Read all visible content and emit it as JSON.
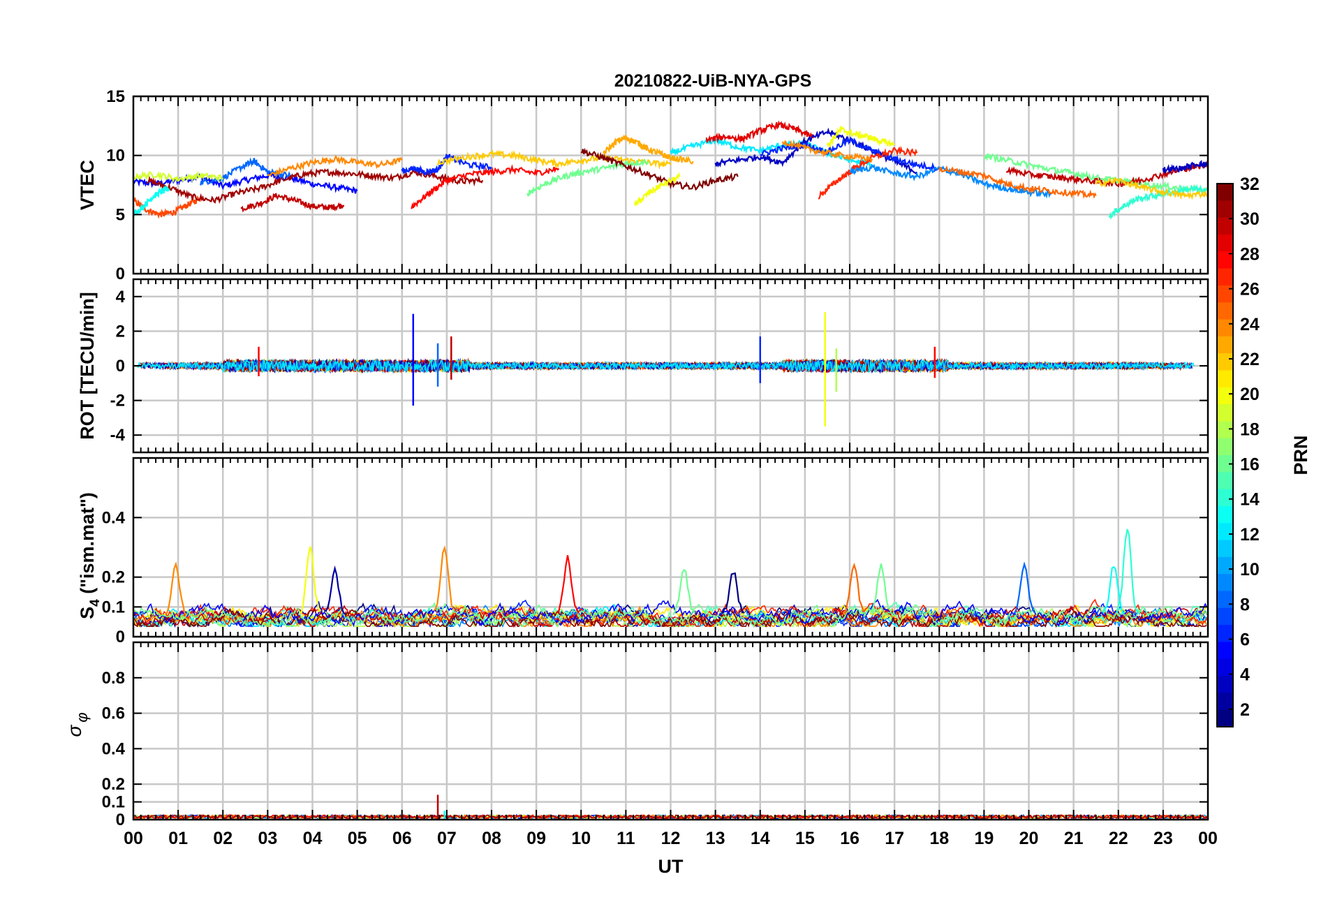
{
  "title": "20210822-UiB-NYA-GPS",
  "colors": {
    "background": "#ffffff",
    "axis": "#000000",
    "grid": "#c8c8c8",
    "colormap": "jet"
  },
  "chart_data": [
    {
      "type": "line",
      "panel": "vtec",
      "ylabel": "VTEC",
      "ylim": [
        0,
        15
      ],
      "yticks": [
        "0",
        "5",
        "10",
        "15"
      ],
      "xlim": [
        0,
        24
      ],
      "grid": true,
      "series": [
        {
          "prn": 5,
          "x": [
            0.0,
            0.5,
            1.0,
            1.5,
            2.0,
            2.5,
            3.0,
            3.5,
            4.0,
            4.5,
            5.0
          ],
          "y": [
            7.8,
            7.6,
            7.9,
            8.2,
            7.4,
            7.9,
            8.3,
            8.1,
            7.6,
            7.3,
            7.0
          ]
        },
        {
          "prn": 26,
          "x": [
            0.0,
            0.3,
            0.6,
            0.9,
            1.2,
            1.5
          ],
          "y": [
            6.2,
            5.4,
            5.0,
            5.2,
            5.8,
            6.4
          ]
        },
        {
          "prn": 30,
          "x": [
            2.4,
            2.8,
            3.2,
            3.6,
            4.0,
            4.4,
            4.7
          ],
          "y": [
            5.5,
            5.9,
            6.6,
            6.2,
            5.7,
            5.6,
            5.8
          ]
        },
        {
          "prn": 31,
          "x": [
            0.3,
            0.8,
            1.3,
            1.8,
            2.3,
            2.8,
            3.3,
            3.8,
            4.3,
            4.8,
            5.3,
            5.8,
            6.3,
            6.8,
            7.3,
            7.8
          ],
          "y": [
            7.9,
            7.3,
            6.5,
            6.2,
            6.8,
            7.2,
            7.9,
            8.4,
            8.6,
            8.5,
            8.3,
            8.1,
            8.6,
            8.2,
            7.8,
            7.9
          ]
        },
        {
          "prn": 8,
          "x": [
            1.5,
            2.0,
            2.5,
            2.7,
            3.0,
            3.5
          ],
          "y": [
            7.7,
            8.1,
            9.2,
            9.5,
            8.6,
            8.3
          ]
        },
        {
          "prn": 24,
          "x": [
            3.0,
            3.5,
            4.0,
            4.5,
            5.0,
            5.5,
            6.0
          ],
          "y": [
            8.3,
            8.9,
            9.4,
            9.7,
            9.4,
            9.2,
            9.6
          ]
        },
        {
          "prn": 19,
          "x": [
            0.0,
            0.5,
            1.0,
            1.5,
            2.0
          ],
          "y": [
            8.2,
            8.4,
            8.0,
            8.3,
            8.1
          ]
        },
        {
          "prn": 13,
          "x": [
            0.0,
            0.2,
            0.4,
            0.6,
            0.8
          ],
          "y": [
            5.0,
            5.6,
            6.4,
            6.9,
            7.2
          ]
        },
        {
          "prn": 28,
          "x": [
            6.2,
            6.6,
            7.0,
            7.5,
            8.0,
            8.5,
            9.0,
            9.5
          ],
          "y": [
            5.6,
            6.8,
            7.9,
            8.4,
            8.6,
            8.8,
            8.5,
            8.9
          ]
        },
        {
          "prn": 6,
          "x": [
            6.0,
            6.3,
            6.5,
            6.8,
            7.0,
            7.5,
            8.0
          ],
          "y": [
            8.7,
            8.9,
            8.6,
            8.8,
            9.9,
            9.2,
            9.0
          ]
        },
        {
          "prn": 22,
          "x": [
            6.8,
            7.5,
            8.0,
            8.5,
            9.0,
            9.5,
            10.0,
            10.5,
            11.0,
            11.5,
            12.0
          ],
          "y": [
            9.4,
            9.9,
            10.1,
            10.0,
            9.6,
            9.3,
            9.6,
            9.8,
            9.6,
            9.4,
            9.2
          ]
        },
        {
          "prn": 16,
          "x": [
            8.8,
            9.2,
            9.6,
            10.0,
            10.5,
            11.0,
            11.5
          ],
          "y": [
            6.8,
            7.6,
            8.2,
            8.6,
            8.9,
            9.3,
            9.5
          ]
        },
        {
          "prn": 32,
          "x": [
            10.0,
            10.5,
            11.0,
            11.5,
            12.0,
            12.5,
            13.0,
            13.5
          ],
          "y": [
            10.4,
            9.8,
            9.1,
            8.4,
            7.6,
            7.3,
            7.9,
            8.2
          ]
        },
        {
          "prn": 23,
          "x": [
            10.5,
            10.8,
            11.0,
            11.3,
            11.5,
            11.8,
            12.0,
            12.5
          ],
          "y": [
            10.2,
            11.2,
            11.5,
            11.0,
            10.5,
            10.1,
            9.8,
            9.5
          ]
        },
        {
          "prn": 20,
          "x": [
            11.2,
            11.5,
            11.8,
            12.2
          ],
          "y": [
            5.8,
            6.8,
            7.5,
            8.2
          ]
        },
        {
          "prn": 12,
          "x": [
            12.0,
            12.5,
            13.0,
            13.5,
            14.0,
            14.5,
            15.0,
            15.5,
            16.0,
            16.5
          ],
          "y": [
            10.2,
            10.8,
            11.3,
            10.7,
            10.4,
            10.9,
            11.0,
            10.2,
            9.6,
            9.2
          ]
        },
        {
          "prn": 29,
          "x": [
            12.8,
            13.2,
            13.6,
            14.0,
            14.4,
            14.8,
            15.2
          ],
          "y": [
            11.3,
            11.6,
            11.4,
            12.1,
            12.6,
            12.2,
            11.5
          ]
        },
        {
          "prn": 3,
          "x": [
            13.0,
            13.5,
            14.0,
            14.5,
            15.0,
            15.5,
            16.0,
            16.5,
            17.0,
            17.5
          ],
          "y": [
            9.3,
            9.6,
            9.9,
            9.4,
            11.2,
            12.0,
            11.3,
            10.4,
            9.5,
            8.6
          ]
        },
        {
          "prn": 6,
          "x": [
            14.0,
            14.5,
            15.0,
            15.5,
            16.0,
            16.5,
            17.0,
            17.5,
            18.0
          ],
          "y": [
            10.1,
            10.6,
            10.9,
            10.3,
            11.3,
            10.4,
            9.7,
            9.2,
            8.9
          ]
        },
        {
          "prn": 20,
          "x": [
            15.5,
            15.8,
            16.1,
            16.4,
            16.7,
            17.0
          ],
          "y": [
            10.8,
            12.2,
            11.8,
            11.6,
            11.2,
            10.9
          ]
        },
        {
          "prn": 27,
          "x": [
            15.3,
            15.7,
            16.1,
            16.5,
            17.0,
            17.5
          ],
          "y": [
            6.5,
            7.8,
            8.9,
            9.8,
            10.4,
            10.2
          ]
        },
        {
          "prn": 24,
          "x": [
            14.5,
            15.0,
            15.5,
            16.0,
            16.5
          ],
          "y": [
            11.2,
            10.6,
            10.2,
            9.9,
            9.7
          ]
        },
        {
          "prn": 9,
          "x": [
            16.0,
            16.5,
            17.0,
            17.5,
            18.0,
            18.5,
            19.0,
            19.5,
            20.0,
            20.5
          ],
          "y": [
            8.6,
            9.0,
            8.5,
            8.2,
            8.9,
            8.4,
            7.6,
            7.2,
            6.9,
            6.7
          ]
        },
        {
          "prn": 25,
          "x": [
            18.0,
            18.5,
            19.0,
            19.5,
            20.0,
            20.5,
            21.0,
            21.5
          ],
          "y": [
            8.9,
            8.6,
            8.3,
            7.6,
            7.2,
            7.0,
            6.8,
            6.6
          ]
        },
        {
          "prn": 16,
          "x": [
            19.0,
            19.5,
            20.0,
            20.5,
            21.0,
            21.5,
            22.0,
            22.5,
            23.0,
            23.5,
            24.0
          ],
          "y": [
            10.0,
            9.6,
            9.2,
            8.8,
            8.5,
            8.1,
            7.9,
            7.6,
            7.4,
            7.2,
            7.0
          ]
        },
        {
          "prn": 30,
          "x": [
            19.5,
            20.0,
            20.5,
            21.0,
            21.5,
            22.0,
            22.5,
            23.0,
            23.5,
            24.0
          ],
          "y": [
            8.8,
            8.4,
            8.2,
            8.0,
            7.8,
            7.6,
            7.9,
            8.4,
            8.9,
            9.2
          ]
        },
        {
          "prn": 14,
          "x": [
            21.8,
            22.1,
            22.4,
            22.8,
            23.2,
            23.6,
            24.0
          ],
          "y": [
            4.9,
            5.7,
            6.3,
            6.6,
            6.9,
            7.2,
            7.0
          ]
        },
        {
          "prn": 22,
          "x": [
            21.5,
            22.0,
            22.5,
            23.0,
            23.5,
            24.0
          ],
          "y": [
            7.6,
            7.9,
            7.3,
            6.9,
            6.6,
            6.8
          ]
        },
        {
          "prn": 3,
          "x": [
            23.0,
            23.4,
            23.8,
            24.0
          ],
          "y": [
            8.8,
            8.9,
            9.3,
            9.2
          ]
        }
      ]
    },
    {
      "type": "line",
      "panel": "rot",
      "ylabel": "ROT [TECU/min]",
      "ylim": [
        -5,
        5
      ],
      "yticks": [
        "-4",
        "-2",
        "0",
        "2",
        "4"
      ],
      "xlim": [
        0,
        24
      ],
      "grid": true,
      "baseline": 0,
      "spikes": [
        {
          "x": 6.25,
          "ymin": -2.3,
          "ymax": 3.0,
          "prn": 5
        },
        {
          "x": 6.8,
          "ymin": -1.2,
          "ymax": 1.3,
          "prn": 8
        },
        {
          "x": 7.1,
          "ymin": -0.8,
          "ymax": 1.7,
          "prn": 30
        },
        {
          "x": 14.0,
          "ymin": -1.0,
          "ymax": 1.7,
          "prn": 6
        },
        {
          "x": 15.45,
          "ymin": -3.5,
          "ymax": 3.1,
          "prn": 20
        },
        {
          "x": 15.7,
          "ymin": -1.5,
          "ymax": 1.0,
          "prn": 18
        },
        {
          "x": 2.8,
          "ymin": -0.6,
          "ymax": 1.1,
          "prn": 28
        },
        {
          "x": 17.9,
          "ymin": -0.7,
          "ymax": 1.1,
          "prn": 28
        }
      ]
    },
    {
      "type": "line",
      "panel": "s4",
      "ylabel": "S4 (\"ism.mat\")",
      "ylabel_main": "S",
      "ylabel_sub": "4",
      "ylabel_rest": " (\"ism.mat\")",
      "ylim": [
        0,
        0.6
      ],
      "yticks": [
        "0",
        "0.1",
        "0.2",
        "0.4"
      ],
      "xlim": [
        0,
        24
      ],
      "grid": true,
      "peaks": [
        {
          "x": 0.95,
          "y": 0.24,
          "prn": 24
        },
        {
          "x": 3.95,
          "y": 0.3,
          "prn": 20
        },
        {
          "x": 4.5,
          "y": 0.23,
          "prn": 2
        },
        {
          "x": 6.95,
          "y": 0.3,
          "prn": 24
        },
        {
          "x": 9.7,
          "y": 0.27,
          "prn": 28
        },
        {
          "x": 12.3,
          "y": 0.23,
          "prn": 16
        },
        {
          "x": 13.4,
          "y": 0.22,
          "prn": 1
        },
        {
          "x": 16.1,
          "y": 0.24,
          "prn": 25
        },
        {
          "x": 16.7,
          "y": 0.24,
          "prn": 16
        },
        {
          "x": 19.9,
          "y": 0.24,
          "prn": 8
        },
        {
          "x": 22.2,
          "y": 0.37,
          "prn": 14
        },
        {
          "x": 21.9,
          "y": 0.24,
          "prn": 13
        }
      ]
    },
    {
      "type": "line",
      "panel": "sigma_phi",
      "ylabel": "σ φ",
      "ylabel_main": "σ",
      "ylabel_sub": "φ",
      "ylim": [
        0,
        1
      ],
      "yticks": [
        "0",
        "0.1",
        "0.2",
        "0.4",
        "0.6",
        "0.8"
      ],
      "xlim": [
        0,
        24
      ],
      "xlabel": "UT",
      "xticks": [
        "00",
        "01",
        "02",
        "03",
        "04",
        "05",
        "06",
        "07",
        "08",
        "09",
        "10",
        "11",
        "12",
        "13",
        "14",
        "15",
        "16",
        "17",
        "18",
        "19",
        "20",
        "21",
        "22",
        "23",
        "00"
      ],
      "grid": true,
      "baseline": 0.01,
      "spikes": [
        {
          "x": 6.8,
          "ymin": 0.0,
          "ymax": 0.14,
          "prn": 30
        },
        {
          "x": 6.95,
          "ymin": 0.0,
          "ymax": 0.05,
          "prn": 13
        }
      ]
    },
    {
      "type": "colorbar",
      "label": "PRN",
      "colormap": "jet",
      "clim": [
        1,
        32
      ],
      "ticks": [
        "2",
        "4",
        "6",
        "8",
        "10",
        "12",
        "14",
        "16",
        "18",
        "20",
        "22",
        "24",
        "26",
        "28",
        "30",
        "32"
      ]
    }
  ]
}
